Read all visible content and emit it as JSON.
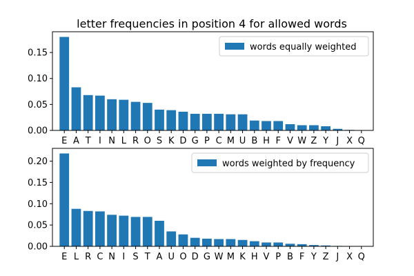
{
  "figure": {
    "title": "letter frequencies in position 4 for allowed words"
  },
  "chart_data": [
    {
      "type": "bar",
      "title": "letter frequencies in position 4 for allowed words",
      "xlabel": "",
      "ylabel": "",
      "ylim": [
        0,
        0.19
      ],
      "yticks": [
        "0.00",
        "0.05",
        "0.10",
        "0.15"
      ],
      "yticks_values": [
        0.0,
        0.05,
        0.1,
        0.15
      ],
      "legend_placement": "top-right",
      "grid": false,
      "bar_color": "#1f77b4",
      "categories": [
        "E",
        "A",
        "T",
        "I",
        "N",
        "L",
        "R",
        "O",
        "S",
        "K",
        "D",
        "G",
        "P",
        "C",
        "M",
        "U",
        "B",
        "H",
        "F",
        "V",
        "W",
        "Z",
        "Y",
        "J",
        "X",
        "Q"
      ],
      "series": [
        {
          "name": "words equally weighted",
          "values": [
            0.18,
            0.083,
            0.068,
            0.067,
            0.06,
            0.059,
            0.055,
            0.053,
            0.04,
            0.039,
            0.036,
            0.032,
            0.032,
            0.032,
            0.031,
            0.031,
            0.019,
            0.018,
            0.018,
            0.012,
            0.01,
            0.01,
            0.008,
            0.003,
            0.001,
            0.0005
          ]
        }
      ]
    },
    {
      "type": "bar",
      "title": "",
      "xlabel": "",
      "ylabel": "",
      "ylim": [
        0,
        0.23
      ],
      "yticks": [
        "0.00",
        "0.05",
        "0.10",
        "0.15",
        "0.20"
      ],
      "yticks_values": [
        0.0,
        0.05,
        0.1,
        0.15,
        0.2
      ],
      "legend_placement": "top-right",
      "grid": false,
      "bar_color": "#1f77b4",
      "categories": [
        "E",
        "L",
        "R",
        "C",
        "N",
        "I",
        "S",
        "T",
        "A",
        "U",
        "O",
        "D",
        "G",
        "W",
        "M",
        "K",
        "H",
        "V",
        "P",
        "B",
        "F",
        "Y",
        "Z",
        "J",
        "X",
        "Q"
      ],
      "series": [
        {
          "name": "words weighted by frequency",
          "values": [
            0.218,
            0.088,
            0.083,
            0.082,
            0.074,
            0.072,
            0.069,
            0.069,
            0.06,
            0.035,
            0.028,
            0.02,
            0.018,
            0.017,
            0.017,
            0.015,
            0.012,
            0.009,
            0.009,
            0.006,
            0.005,
            0.003,
            0.002,
            0.001,
            0.0003,
            0.0002
          ]
        }
      ]
    }
  ]
}
